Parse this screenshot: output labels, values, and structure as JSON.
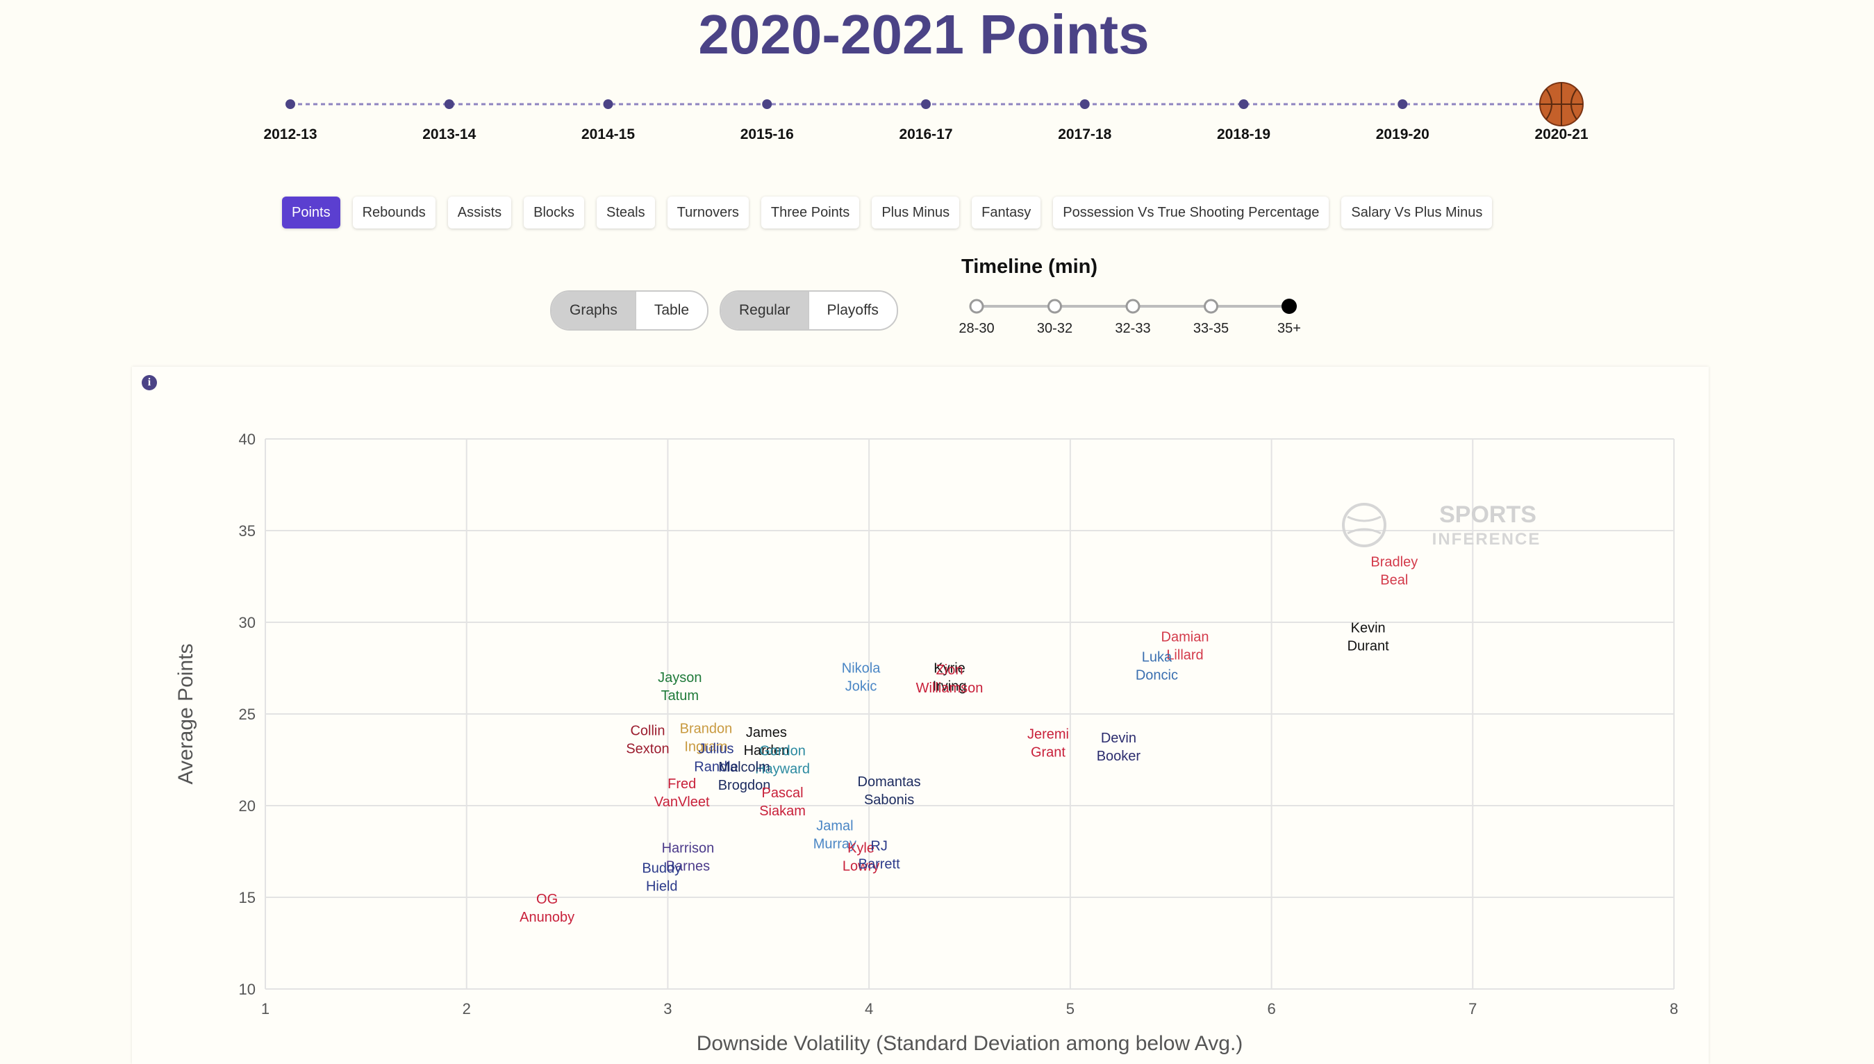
{
  "page_title": "2020-2021 Points",
  "seasons": [
    "2012-13",
    "2013-14",
    "2014-15",
    "2015-16",
    "2016-17",
    "2017-18",
    "2018-19",
    "2019-20",
    "2020-21"
  ],
  "selected_season": "2020-21",
  "stat_tabs": [
    {
      "label": "Points",
      "active": true
    },
    {
      "label": "Rebounds",
      "active": false
    },
    {
      "label": "Assists",
      "active": false
    },
    {
      "label": "Blocks",
      "active": false
    },
    {
      "label": "Steals",
      "active": false
    },
    {
      "label": "Turnovers",
      "active": false
    },
    {
      "label": "Three Points",
      "active": false
    },
    {
      "label": "Plus Minus",
      "active": false
    },
    {
      "label": "Fantasy",
      "active": false
    },
    {
      "label": "Possession Vs True Shooting Percentage",
      "active": false
    },
    {
      "label": "Salary Vs Plus Minus",
      "active": false
    }
  ],
  "view_toggle": {
    "graphs": "Graphs",
    "table": "Table",
    "selected": "Graphs"
  },
  "season_type_toggle": {
    "regular": "Regular",
    "playoffs": "Playoffs",
    "selected": "Regular"
  },
  "minutes_timeline": {
    "title": "Timeline (min)",
    "options": [
      "28-30",
      "30-32",
      "32-33",
      "33-35",
      "35+"
    ],
    "selected": "35+"
  },
  "watermark": {
    "line1": "SPORTS",
    "line2": "INFERENCE"
  },
  "colors": {
    "accent": "#5b3fd0",
    "title": "#4b4386"
  },
  "chart_data": {
    "type": "scatter",
    "xlabel": "Downside Volatility (Standard Deviation among below Avg.)",
    "ylabel": "Average Points",
    "xlim": [
      1,
      8
    ],
    "ylim": [
      10,
      40
    ],
    "xticks": [
      1,
      2,
      3,
      4,
      5,
      6,
      7,
      8
    ],
    "yticks": [
      10,
      15,
      20,
      25,
      30,
      35,
      40
    ],
    "grid": true,
    "points": [
      {
        "label": [
          "Bradley",
          "Beal"
        ],
        "x": 6.61,
        "y": 32.9,
        "color": "#d33a4a"
      },
      {
        "label": [
          "Kevin",
          "Durant"
        ],
        "x": 6.48,
        "y": 29.3,
        "color": "#111111"
      },
      {
        "label": [
          "Damian",
          "Lillard"
        ],
        "x": 5.57,
        "y": 28.8,
        "color": "#d33a4a"
      },
      {
        "label": [
          "Luka",
          "Doncic"
        ],
        "x": 5.43,
        "y": 27.7,
        "color": "#3a6fb0"
      },
      {
        "label": [
          "Jeremi",
          "Grant"
        ],
        "x": 4.89,
        "y": 23.5,
        "color": "#c8203a"
      },
      {
        "label": [
          "Devin",
          "Booker"
        ],
        "x": 5.24,
        "y": 23.3,
        "color": "#2b2c6e"
      },
      {
        "label": [
          "Nikola",
          "Jokic"
        ],
        "x": 3.96,
        "y": 27.1,
        "color": "#4a86c5"
      },
      {
        "label": [
          "Kyrie",
          "Irving"
        ],
        "x": 4.4,
        "y": 27.1,
        "color": "#111111"
      },
      {
        "label": [
          "Zion",
          "Williamson"
        ],
        "x": 4.4,
        "y": 27.0,
        "color": "#c8203a"
      },
      {
        "label": [
          "Jayson",
          "Tatum"
        ],
        "x": 3.06,
        "y": 26.6,
        "color": "#1f7a3a"
      },
      {
        "label": [
          "Collin",
          "Sexton"
        ],
        "x": 2.9,
        "y": 23.7,
        "color": "#9b1c2e"
      },
      {
        "label": [
          "Brandon",
          "Ingram"
        ],
        "x": 3.19,
        "y": 23.8,
        "color": "#c89a40"
      },
      {
        "label": [
          "James",
          "Harden"
        ],
        "x": 3.49,
        "y": 23.6,
        "color": "#111111"
      },
      {
        "label": [
          "Julius",
          "Randle"
        ],
        "x": 3.24,
        "y": 22.7,
        "color": "#2b3a8a"
      },
      {
        "label": [
          "Gordon",
          "Hayward"
        ],
        "x": 3.57,
        "y": 22.6,
        "color": "#2b8aa0"
      },
      {
        "label": [
          "Malcolm",
          "Brogdon"
        ],
        "x": 3.38,
        "y": 21.7,
        "color": "#1b2a5e"
      },
      {
        "label": [
          "Fred",
          "VanVleet"
        ],
        "x": 3.07,
        "y": 20.8,
        "color": "#c8203a"
      },
      {
        "label": [
          "Pascal",
          "Siakam"
        ],
        "x": 3.57,
        "y": 20.3,
        "color": "#c8203a"
      },
      {
        "label": [
          "Domantas",
          "Sabonis"
        ],
        "x": 4.1,
        "y": 20.9,
        "color": "#1b2a5e"
      },
      {
        "label": [
          "Jamal",
          "Murray"
        ],
        "x": 3.83,
        "y": 18.5,
        "color": "#4a86c5"
      },
      {
        "label": [
          "Kyle",
          "Lowry"
        ],
        "x": 3.96,
        "y": 17.3,
        "color": "#c8203a"
      },
      {
        "label": [
          "RJ",
          "Barrett"
        ],
        "x": 4.05,
        "y": 17.4,
        "color": "#2b3a8a"
      },
      {
        "label": [
          "Harrison",
          "Barnes"
        ],
        "x": 3.1,
        "y": 17.3,
        "color": "#4b3a8a"
      },
      {
        "label": [
          "Buddy",
          "Hield"
        ],
        "x": 2.97,
        "y": 16.2,
        "color": "#2b3a8a"
      },
      {
        "label": [
          "OG",
          "Anunoby"
        ],
        "x": 2.4,
        "y": 14.5,
        "color": "#c8203a"
      }
    ]
  }
}
